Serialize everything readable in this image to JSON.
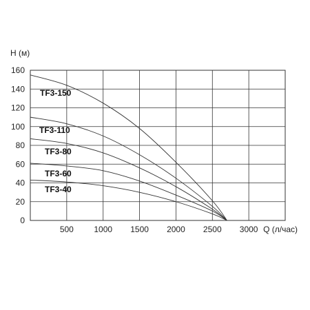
{
  "chart_data": {
    "type": "line",
    "xlabel": "Q (л/час)",
    "ylabel": "H (м)",
    "xlim": [
      0,
      3500
    ],
    "ylim": [
      0,
      160
    ],
    "x_ticks": [
      500,
      1000,
      1500,
      2000,
      2500,
      3000
    ],
    "y_ticks": [
      0,
      20,
      40,
      60,
      80,
      100,
      120,
      140,
      160
    ],
    "grid": true,
    "legend": "inline",
    "series": [
      {
        "name": "TF3-150",
        "x": [
          0,
          500,
          1000,
          1500,
          2000,
          2500,
          2700
        ],
        "y": [
          155,
          144,
          125,
          98,
          62,
          21,
          0
        ]
      },
      {
        "name": "TF3-110",
        "x": [
          0,
          500,
          1000,
          1500,
          2000,
          2500,
          2700
        ],
        "y": [
          110,
          103,
          90,
          70,
          45,
          15,
          0
        ]
      },
      {
        "name": "TF3-80",
        "x": [
          0,
          500,
          1000,
          1500,
          2000,
          2500,
          2700
        ],
        "y": [
          87,
          82,
          72,
          56,
          36,
          12,
          0
        ]
      },
      {
        "name": "TF3-60",
        "x": [
          0,
          500,
          1000,
          1500,
          2000,
          2500,
          2700
        ],
        "y": [
          61,
          58,
          53,
          42,
          27,
          10,
          0
        ]
      },
      {
        "name": "TF3-40",
        "x": [
          0,
          500,
          1000,
          1500,
          2000,
          2500,
          2700
        ],
        "y": [
          43,
          41,
          37,
          30,
          20,
          7,
          0
        ]
      }
    ]
  }
}
